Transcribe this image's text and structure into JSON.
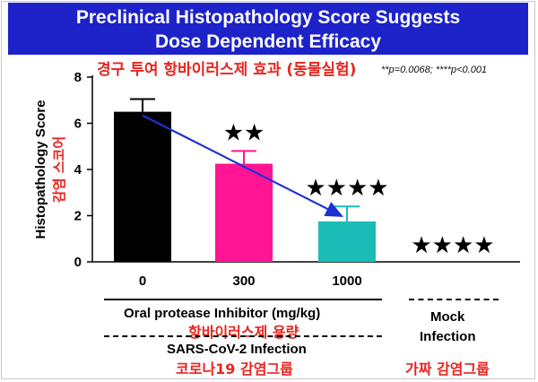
{
  "title": {
    "line1": "Preclinical Histopathology Score Suggests",
    "line2": "Dose Dependent Efficacy"
  },
  "korean_subtitle": "경구 투여 항바이러스제 효과 (동물실험)",
  "p_values_note": "**p=0.0068;   ****p<0.001",
  "colors": {
    "title_bg": "#1e22c9",
    "annotation_red": "#e8251f",
    "arrow_blue": "#1c31d6"
  },
  "chart_data": {
    "type": "bar",
    "ylabel": "Histopathology Score",
    "ylabel_korean": "감염 스코어",
    "ylim": [
      0,
      8
    ],
    "yticks": [
      0,
      2,
      4,
      6,
      8
    ],
    "categories": [
      "0",
      "300",
      "1000",
      ""
    ],
    "values": [
      6.5,
      4.25,
      1.75,
      0
    ],
    "errors": [
      0.55,
      0.55,
      0.65,
      0
    ],
    "bar_colors": [
      "#000000",
      "#ff1493",
      "#1bbcb8",
      null
    ],
    "significance": [
      "",
      "★★",
      "★★★★",
      "★★★★"
    ],
    "trend_arrow": {
      "from_category": 0,
      "to_category": 2,
      "color": "#1c31d6"
    },
    "grid": false
  },
  "footer": {
    "group1_label": "Oral protease Inhibitor (mg/kg)",
    "group1_korean": "항바이러스제 용량",
    "group2_label_line1": "Mock",
    "group2_label_line2": "Infection",
    "infection_label": "SARS-CoV-2 Infection",
    "infection_korean": "코로나19 감염그룹",
    "mock_korean": "가짜 감염그룹"
  }
}
